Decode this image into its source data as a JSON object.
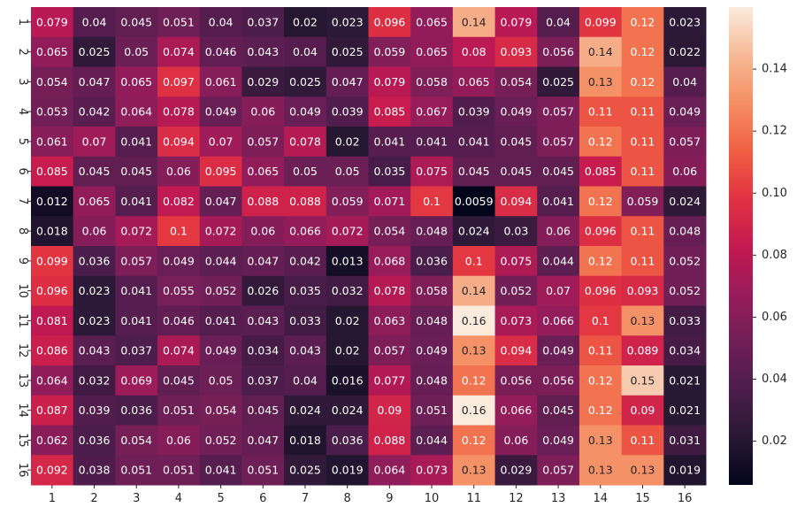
{
  "chart_data": {
    "type": "heatmap",
    "title": "",
    "xlabel": "",
    "ylabel": "",
    "x_categories": [
      "1",
      "2",
      "3",
      "4",
      "5",
      "6",
      "7",
      "8",
      "9",
      "10",
      "11",
      "12",
      "13",
      "14",
      "15",
      "16"
    ],
    "y_categories": [
      "1",
      "2",
      "3",
      "4",
      "5",
      "6",
      "7",
      "8",
      "9",
      "10",
      "11",
      "12",
      "13",
      "14",
      "15",
      "16"
    ],
    "values": [
      [
        0.079,
        0.04,
        0.045,
        0.051,
        0.04,
        0.037,
        0.02,
        0.023,
        0.096,
        0.065,
        0.14,
        0.079,
        0.04,
        0.099,
        0.12,
        0.023
      ],
      [
        0.065,
        0.025,
        0.05,
        0.074,
        0.046,
        0.043,
        0.04,
        0.025,
        0.059,
        0.065,
        0.08,
        0.093,
        0.056,
        0.14,
        0.12,
        0.022
      ],
      [
        0.054,
        0.047,
        0.065,
        0.097,
        0.061,
        0.029,
        0.025,
        0.047,
        0.079,
        0.058,
        0.065,
        0.054,
        0.025,
        0.13,
        0.12,
        0.04
      ],
      [
        0.053,
        0.042,
        0.064,
        0.078,
        0.049,
        0.06,
        0.049,
        0.039,
        0.085,
        0.067,
        0.039,
        0.049,
        0.057,
        0.11,
        0.11,
        0.049
      ],
      [
        0.061,
        0.07,
        0.041,
        0.094,
        0.07,
        0.057,
        0.078,
        0.02,
        0.041,
        0.041,
        0.041,
        0.045,
        0.057,
        0.12,
        0.11,
        0.057
      ],
      [
        0.085,
        0.045,
        0.045,
        0.06,
        0.095,
        0.065,
        0.05,
        0.05,
        0.035,
        0.075,
        0.045,
        0.045,
        0.045,
        0.085,
        0.11,
        0.06
      ],
      [
        0.012,
        0.065,
        0.041,
        0.082,
        0.047,
        0.088,
        0.088,
        0.059,
        0.071,
        0.1,
        0.0059,
        0.094,
        0.041,
        0.12,
        0.059,
        0.024
      ],
      [
        0.018,
        0.06,
        0.072,
        0.1,
        0.072,
        0.06,
        0.066,
        0.072,
        0.054,
        0.048,
        0.024,
        0.03,
        0.06,
        0.096,
        0.11,
        0.048
      ],
      [
        0.099,
        0.036,
        0.057,
        0.049,
        0.044,
        0.047,
        0.042,
        0.013,
        0.068,
        0.036,
        0.1,
        0.075,
        0.044,
        0.12,
        0.11,
        0.052
      ],
      [
        0.096,
        0.023,
        0.041,
        0.055,
        0.052,
        0.026,
        0.035,
        0.032,
        0.078,
        0.058,
        0.14,
        0.052,
        0.07,
        0.096,
        0.093,
        0.052
      ],
      [
        0.081,
        0.023,
        0.041,
        0.046,
        0.041,
        0.043,
        0.033,
        0.02,
        0.063,
        0.048,
        0.16,
        0.073,
        0.066,
        0.1,
        0.13,
        0.033
      ],
      [
        0.086,
        0.043,
        0.037,
        0.074,
        0.049,
        0.034,
        0.043,
        0.02,
        0.057,
        0.049,
        0.13,
        0.094,
        0.049,
        0.11,
        0.089,
        0.034
      ],
      [
        0.064,
        0.032,
        0.069,
        0.045,
        0.05,
        0.037,
        0.04,
        0.016,
        0.077,
        0.048,
        0.12,
        0.056,
        0.056,
        0.12,
        0.15,
        0.021
      ],
      [
        0.087,
        0.039,
        0.036,
        0.051,
        0.054,
        0.045,
        0.024,
        0.024,
        0.09,
        0.051,
        0.16,
        0.066,
        0.045,
        0.12,
        0.09,
        0.021
      ],
      [
        0.062,
        0.036,
        0.054,
        0.06,
        0.052,
        0.047,
        0.018,
        0.036,
        0.088,
        0.044,
        0.12,
        0.06,
        0.049,
        0.13,
        0.11,
        0.031
      ],
      [
        0.092,
        0.038,
        0.051,
        0.051,
        0.041,
        0.051,
        0.025,
        0.019,
        0.064,
        0.073,
        0.13,
        0.029,
        0.057,
        0.13,
        0.13,
        0.019
      ]
    ],
    "colormap": "rocket",
    "value_range": [
      0.0059,
      0.16
    ],
    "colorbar": {
      "ticks": [
        0.02,
        0.04,
        0.06,
        0.08,
        0.1,
        0.12,
        0.14
      ],
      "tick_labels": [
        "0.02",
        "0.04",
        "0.06",
        "0.08",
        "0.10",
        "0.12",
        "0.14"
      ],
      "placement": "right"
    },
    "annotations": true,
    "grid": false,
    "legend": "none"
  }
}
